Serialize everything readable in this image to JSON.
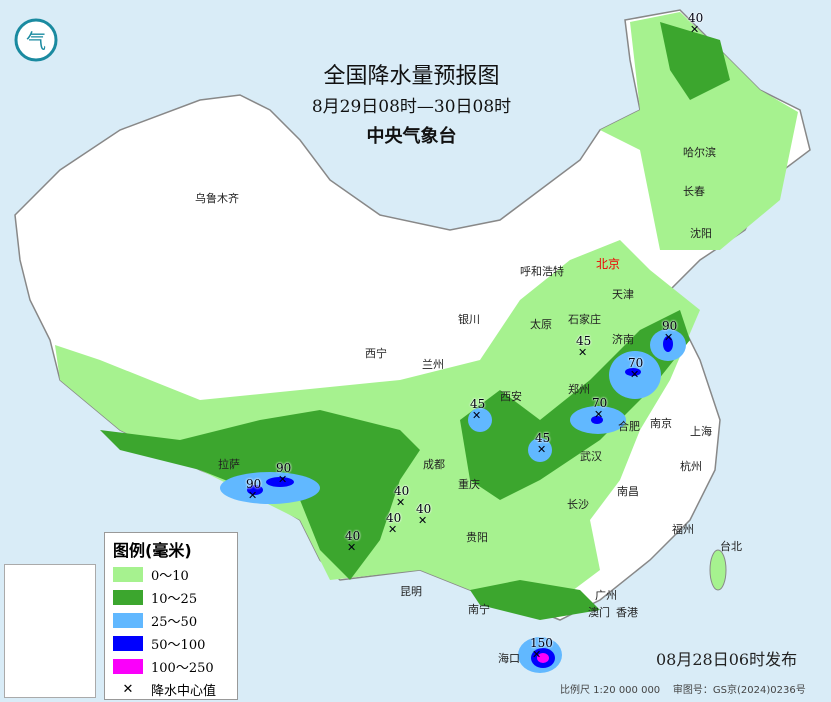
{
  "title": "全国降水量预报图",
  "period": "8月29日08时—30日08时",
  "issuer": "中央气象台",
  "issued": "08月28日06时发布",
  "scale": "比例尺 1:20 000 000",
  "map_approval": "审图号：GS京(2024)0236号",
  "colors": {
    "sea": "#d9ecf7",
    "light_green": "#a6f28f",
    "dark_green": "#3ca62e",
    "light_blue": "#61b8ff",
    "blue": "#0000fe",
    "magenta": "#fa00fa"
  },
  "legend": {
    "title": "图例(毫米)",
    "items": [
      {
        "label": "0～10",
        "color": "#a6f28f"
      },
      {
        "label": "10～25",
        "color": "#3ca62e"
      },
      {
        "label": "25～50",
        "color": "#61b8ff"
      },
      {
        "label": "50～100",
        "color": "#0000fe"
      },
      {
        "label": "100～250",
        "color": "#fa00fa"
      }
    ],
    "center_label": "降水中心值"
  },
  "cities": [
    "乌鲁木齐",
    "哈尔滨",
    "长春",
    "沈阳",
    "北京",
    "天津",
    "呼和浩特",
    "石家庄",
    "太原",
    "济南",
    "银川",
    "西宁",
    "兰州",
    "郑州",
    "西安",
    "合肥",
    "南京",
    "上海",
    "拉萨",
    "成都",
    "武汉",
    "杭州",
    "重庆",
    "长沙",
    "南昌",
    "福州",
    "台北",
    "贵阳",
    "昆明",
    "南宁",
    "广州",
    "澳门",
    "香港",
    "海口"
  ],
  "centers": [
    "40",
    "45",
    "90",
    "70",
    "45",
    "70",
    "45",
    "90",
    "90",
    "40",
    "40",
    "40",
    "40",
    "150"
  ]
}
